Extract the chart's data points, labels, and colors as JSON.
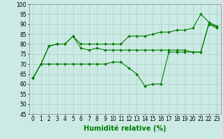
{
  "x": [
    0,
    1,
    2,
    3,
    4,
    5,
    6,
    7,
    8,
    9,
    10,
    11,
    12,
    13,
    14,
    15,
    16,
    17,
    18,
    19,
    20,
    21,
    22,
    23
  ],
  "y_low": [
    63,
    70,
    70,
    70,
    70,
    70,
    70,
    70,
    70,
    70,
    71,
    71,
    68,
    65,
    59,
    60,
    60,
    76,
    76,
    76,
    76,
    76,
    90,
    89
  ],
  "y_mid": [
    63,
    70,
    79,
    80,
    80,
    84,
    78,
    77,
    78,
    77,
    77,
    77,
    77,
    77,
    77,
    77,
    77,
    77,
    77,
    77,
    76,
    76,
    90,
    88
  ],
  "y_high": [
    63,
    70,
    79,
    80,
    80,
    84,
    80,
    80,
    80,
    80,
    80,
    80,
    84,
    84,
    84,
    85,
    86,
    86,
    87,
    87,
    88,
    95,
    91,
    89
  ],
  "line_color": "#008000",
  "marker": "D",
  "markersize": 1.8,
  "linewidth": 0.8,
  "xlabel": "Humidité relative (%)",
  "ylim": [
    45,
    100
  ],
  "yticks": [
    45,
    50,
    55,
    60,
    65,
    70,
    75,
    80,
    85,
    90,
    95,
    100
  ],
  "xticks": [
    0,
    1,
    2,
    3,
    4,
    5,
    6,
    7,
    8,
    9,
    10,
    11,
    12,
    13,
    14,
    15,
    16,
    17,
    18,
    19,
    20,
    21,
    22,
    23
  ],
  "bg_color": "#cceae4",
  "grid_color": "#aaccc8",
  "xlabel_fontsize": 7,
  "xlabel_color": "#008000",
  "tick_fontsize": 5.5
}
